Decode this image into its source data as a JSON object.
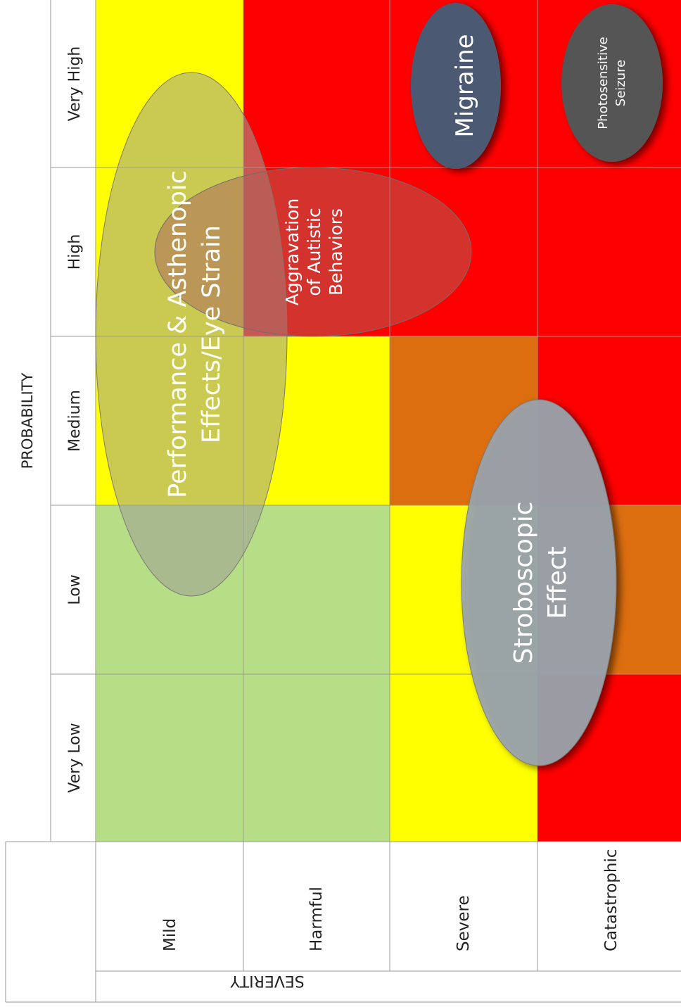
{
  "axis_probability": {
    "title": "PROBABILITY",
    "levels": [
      "Very Low",
      "Low",
      "Medium",
      "High",
      "Very High"
    ]
  },
  "axis_severity": {
    "title": "SEVERITY",
    "levels": [
      "Mild",
      "Harmful",
      "Severe",
      "Catastrophic"
    ]
  },
  "colors": {
    "green": "#b6de86",
    "yellow": "#ffff00",
    "orange": "#dc6e0f",
    "red": "#ff0000",
    "border": "#999999"
  },
  "matrix": {
    "Mild": [
      "green",
      "green",
      "yellow",
      "yellow",
      "yellow"
    ],
    "Harmful": [
      "green",
      "green",
      "yellow",
      "red",
      "red"
    ],
    "Severe": [
      "yellow",
      "yellow",
      "orange",
      "red",
      "red"
    ],
    "Catastrophic": [
      "red",
      "orange",
      "red",
      "red",
      "red"
    ]
  },
  "effects": {
    "performance": {
      "line1": "Performance & Asthenopic",
      "line2": "Effects/Eye Strain"
    },
    "autistic": {
      "line1": "Aggravation",
      "line2": "of Autistic",
      "line3": "Behaviors"
    },
    "migraine": {
      "label": "Migraine"
    },
    "seizure": {
      "line1": "Photosensitive",
      "line2": "Seizure"
    },
    "stroboscopic": {
      "line1": "Stroboscopic",
      "line2": "Effect"
    }
  }
}
